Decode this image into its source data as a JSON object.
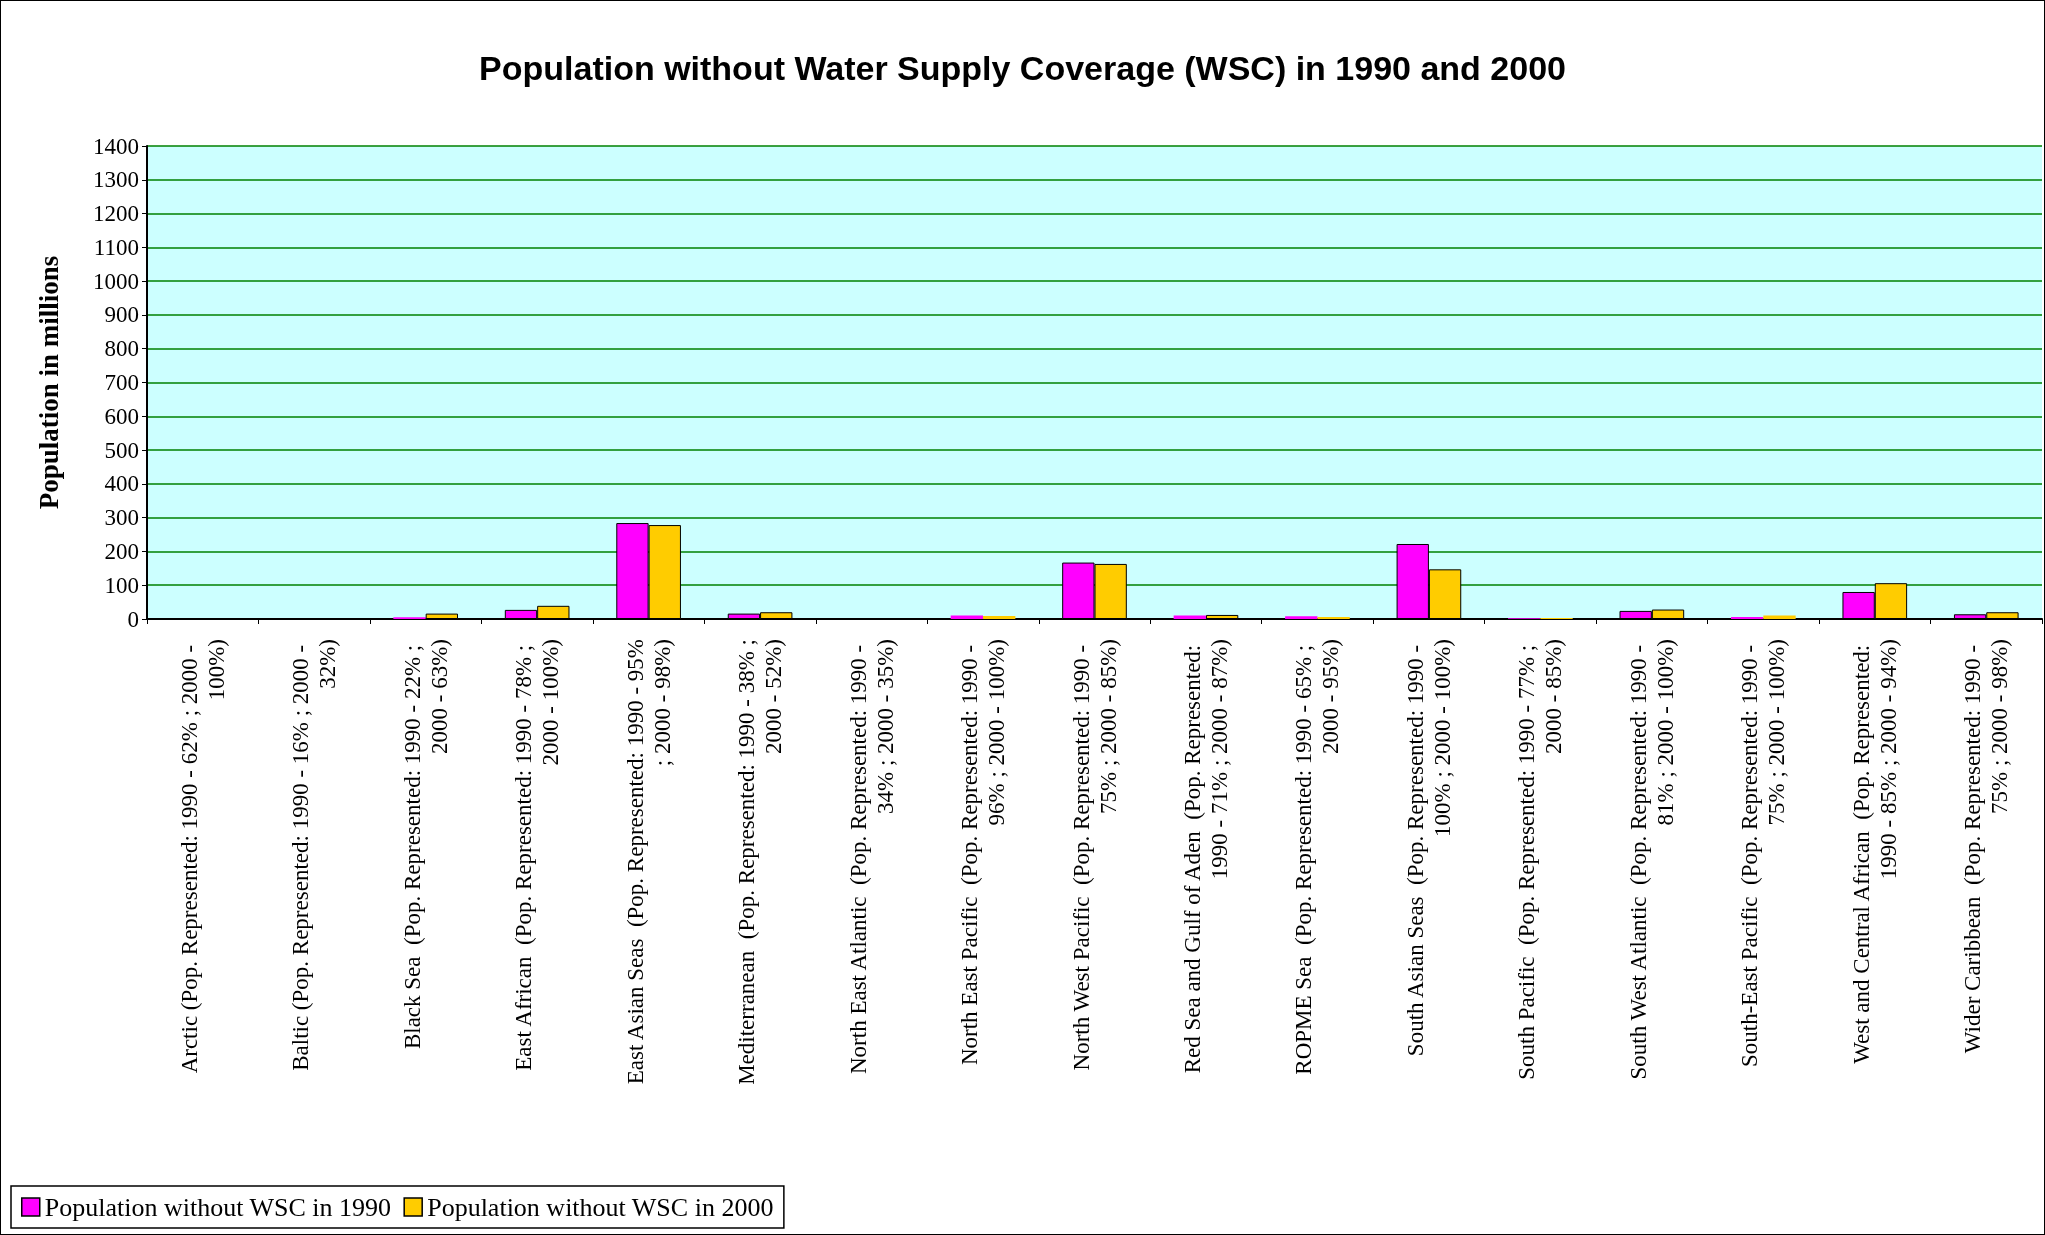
{
  "chart_data": {
    "type": "bar",
    "title": "Population without Water Supply Coverage (WSC) in 1990 and 2000",
    "ylabel": "Population in millions",
    "categories": [
      "Arctic (Pop. Represented: 1990 - 62% ; 2000 - 100%)",
      "Baltic (Pop. Represented: 1990 - 16% ; 2000 - 32%)",
      "Black Sea  (Pop. Represented: 1990 - 22% ; 2000 - 63%)",
      "East African  (Pop. Represented: 1990 - 78% ; 2000 - 100%)",
      "East Asian Seas  (Pop. Represented: 1990 - 95% ; 2000 - 98%)",
      "Mediterranean  (Pop. Represented: 1990 - 38% ; 2000 - 52%)",
      "North East Atlantic  (Pop. Represented: 1990 - 34% ; 2000 - 35%)",
      "North East Pacific  (Pop. Represented: 1990 - 96% ; 2000 - 100%)",
      "North West Pacific  (Pop. Represented: 1990 - 75% ; 2000 - 85%)",
      "Red Sea and Gulf of Aden  (Pop. Represented: 1990 - 71% ; 2000 - 87%)",
      "ROPME Sea  (Pop. Represented: 1990 - 65% ; 2000 - 95%)",
      "South Asian Seas  (Pop. Represented: 1990 - 100% ; 2000 - 100%)",
      "South Pacific  (Pop. Represented: 1990 - 77% ; 2000 - 85%)",
      "South West Atlantic  (Pop. Represented: 1990 - 81% ; 2000 - 100%)",
      "South-East Pacific  (Pop. Represented: 1990 - 75% ; 2000 - 100%)",
      "West and Central African  (Pop. Represented: 1990 - 85% ; 2000 - 94%)",
      "Wider Caribbean  (Pop. Represented: 1990 - 75% ; 2000 - 98%)"
    ],
    "series": [
      {
        "name": "Population without WSC in 1990",
        "color": "#ff00ff",
        "values": [
          null,
          null,
          5,
          27,
          284,
          16,
          null,
          10,
          167,
          10,
          8,
          222,
          2,
          24,
          6,
          80,
          14
        ]
      },
      {
        "name": "Population without WSC in 2000",
        "color": "#ffcc00",
        "values": [
          null,
          null,
          16,
          39,
          278,
          20,
          null,
          9,
          163,
          12,
          6,
          147,
          3,
          28,
          10,
          106,
          20
        ]
      }
    ],
    "ylim": [
      0,
      1400
    ],
    "yticks": [
      0,
      100,
      200,
      300,
      400,
      500,
      600,
      700,
      800,
      900,
      1000,
      1100,
      1200,
      1300,
      1400
    ],
    "grid": "y",
    "legend": "bottom left"
  }
}
